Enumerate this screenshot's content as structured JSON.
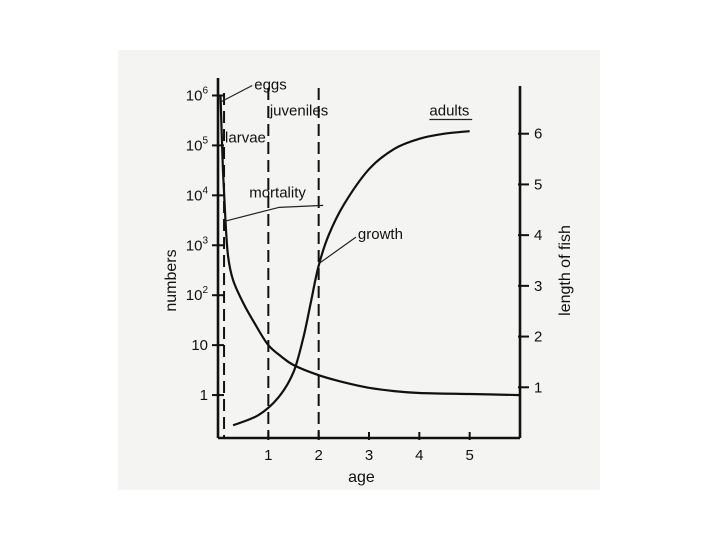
{
  "chart_data": {
    "type": "line",
    "title": "",
    "xlabel": "age",
    "ylabel_left": "numbers",
    "ylabel_right": "length of fish",
    "xlim": [
      0,
      6
    ],
    "x_ticks": [
      1,
      2,
      3,
      4,
      5
    ],
    "x_tick_labels": [
      "1",
      "2",
      "3",
      "4",
      "5"
    ],
    "left_axis": {
      "scale": "log",
      "ticks": [
        1,
        10,
        100,
        1000,
        10000,
        100000,
        1000000
      ],
      "tick_labels": [
        {
          "base": "1",
          "exp": ""
        },
        {
          "base": "10",
          "exp": ""
        },
        {
          "base": "10",
          "exp": "2"
        },
        {
          "base": "10",
          "exp": "3"
        },
        {
          "base": "10",
          "exp": "4"
        },
        {
          "base": "10",
          "exp": "5"
        },
        {
          "base": "10",
          "exp": "6"
        }
      ]
    },
    "right_axis": {
      "scale": "linear",
      "ylim": [
        0,
        7
      ],
      "ticks": [
        1,
        2,
        3,
        4,
        5,
        6
      ],
      "tick_labels": [
        "1",
        "2",
        "3",
        "4",
        "5",
        "6"
      ]
    },
    "stage_boundaries": [
      0.12,
      1,
      2
    ],
    "stage_labels": [
      "eggs",
      "larvae",
      "juveniles",
      "adults"
    ],
    "series": [
      {
        "name": "mortality",
        "axis": "left",
        "x": [
          0.05,
          0.1,
          0.15,
          0.2,
          0.3,
          0.5,
          0.75,
          1,
          1.25,
          1.5,
          2,
          2.5,
          3,
          3.5,
          4,
          5,
          6
        ],
        "y": [
          1000000,
          30000,
          3000,
          600,
          200,
          70,
          25,
          10,
          6,
          4,
          2.5,
          1.8,
          1.4,
          1.2,
          1.1,
          1.05,
          1
        ]
      },
      {
        "name": "growth",
        "axis": "right",
        "x": [
          0.3,
          0.8,
          1.2,
          1.5,
          1.7,
          1.85,
          2,
          2.2,
          2.5,
          3,
          3.5,
          4,
          4.5,
          5
        ],
        "y": [
          0.25,
          0.45,
          0.8,
          1.3,
          2,
          2.7,
          3.4,
          4,
          4.6,
          5.3,
          5.7,
          5.9,
          6,
          6.05
        ]
      }
    ],
    "annotations": [
      "eggs",
      "larvae",
      "juveniles",
      "adults",
      "mortality",
      "growth"
    ]
  }
}
